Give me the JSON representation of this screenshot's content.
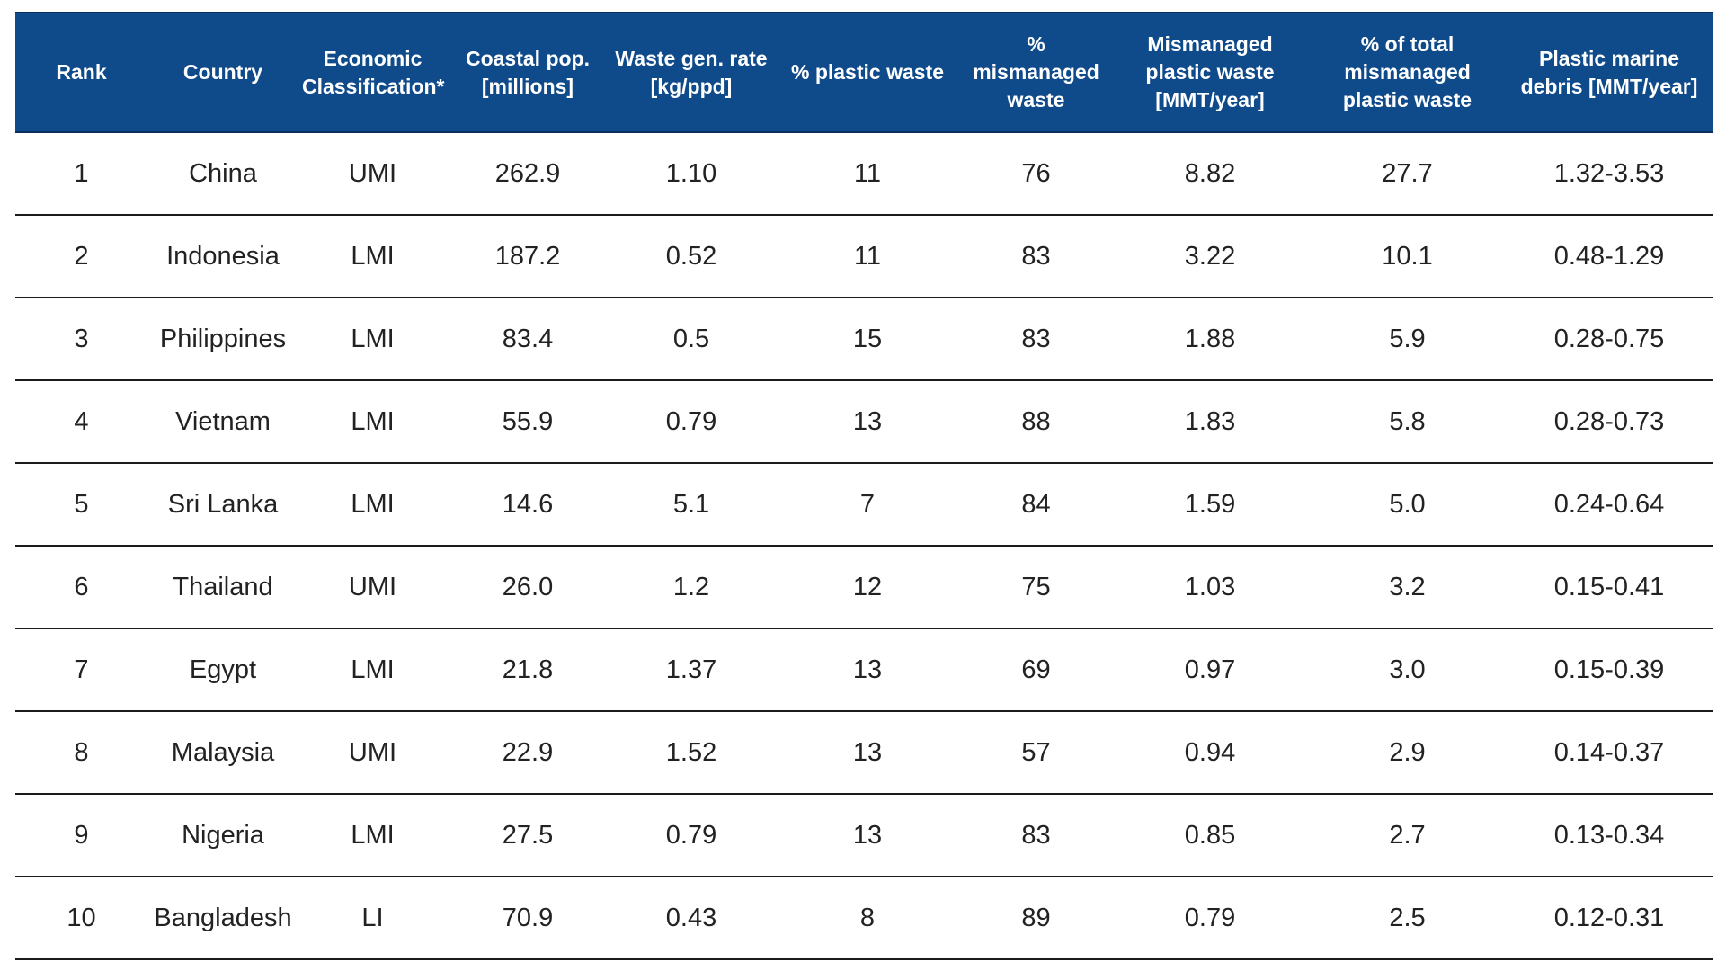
{
  "chart_data": {
    "type": "table",
    "header_fill": "#0f4a8a",
    "columns": [
      [
        "Rank"
      ],
      [
        "Country"
      ],
      [
        "Economic",
        "Classification*"
      ],
      [
        "Coastal pop.",
        "[millions]"
      ],
      [
        "Waste gen. rate",
        "[kg/ppd]"
      ],
      [
        "% plastic waste"
      ],
      [
        "%",
        "mismanaged",
        "waste"
      ],
      [
        "Mismanaged",
        "plastic waste",
        "[MMT/year]"
      ],
      [
        "% of total",
        "mismanaged",
        "plastic waste"
      ],
      [
        "Plastic marine",
        "debris [MMT/year]"
      ]
    ],
    "rows": [
      [
        "1",
        "China",
        "UMI",
        "262.9",
        "1.10",
        "11",
        "76",
        "8.82",
        "27.7",
        "1.32-3.53"
      ],
      [
        "2",
        "Indonesia",
        "LMI",
        "187.2",
        "0.52",
        "11",
        "83",
        "3.22",
        "10.1",
        "0.48-1.29"
      ],
      [
        "3",
        "Philippines",
        "LMI",
        "83.4",
        "0.5",
        "15",
        "83",
        "1.88",
        "5.9",
        "0.28-0.75"
      ],
      [
        "4",
        "Vietnam",
        "LMI",
        "55.9",
        "0.79",
        "13",
        "88",
        "1.83",
        "5.8",
        "0.28-0.73"
      ],
      [
        "5",
        "Sri Lanka",
        "LMI",
        "14.6",
        "5.1",
        "7",
        "84",
        "1.59",
        "5.0",
        "0.24-0.64"
      ],
      [
        "6",
        "Thailand",
        "UMI",
        "26.0",
        "1.2",
        "12",
        "75",
        "1.03",
        "3.2",
        "0.15-0.41"
      ],
      [
        "7",
        "Egypt",
        "LMI",
        "21.8",
        "1.37",
        "13",
        "69",
        "0.97",
        "3.0",
        "0.15-0.39"
      ],
      [
        "8",
        "Malaysia",
        "UMI",
        "22.9",
        "1.52",
        "13",
        "57",
        "0.94",
        "2.9",
        "0.14-0.37"
      ],
      [
        "9",
        "Nigeria",
        "LMI",
        "27.5",
        "0.79",
        "13",
        "83",
        "0.85",
        "2.7",
        "0.13-0.34"
      ],
      [
        "10",
        "Bangladesh",
        "LI",
        "70.9",
        "0.43",
        "8",
        "89",
        "0.79",
        "2.5",
        "0.12-0.31"
      ]
    ]
  }
}
